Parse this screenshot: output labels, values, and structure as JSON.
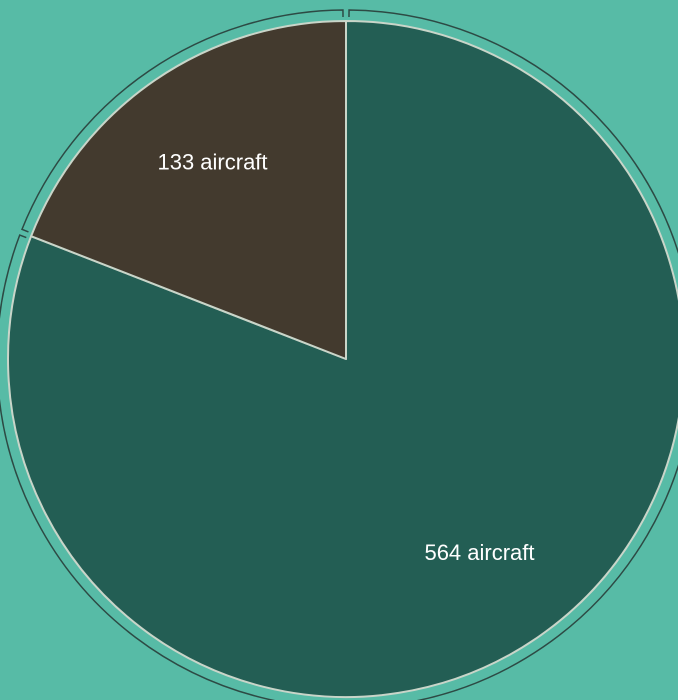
{
  "chart_data": {
    "type": "pie",
    "title": "",
    "slices": [
      {
        "label": "564 aircraft",
        "value": 564,
        "color": "#235e54"
      },
      {
        "label": "133 aircraft",
        "value": 133,
        "color": "#433a2e"
      }
    ],
    "background_color": "#57bba6",
    "slice_border_color": "#c9d5c9",
    "label_color": "#ffffff",
    "bracket_color": "#2d4a44",
    "start_angle": "12 o'clock",
    "direction": "clockwise",
    "legend": "none"
  }
}
